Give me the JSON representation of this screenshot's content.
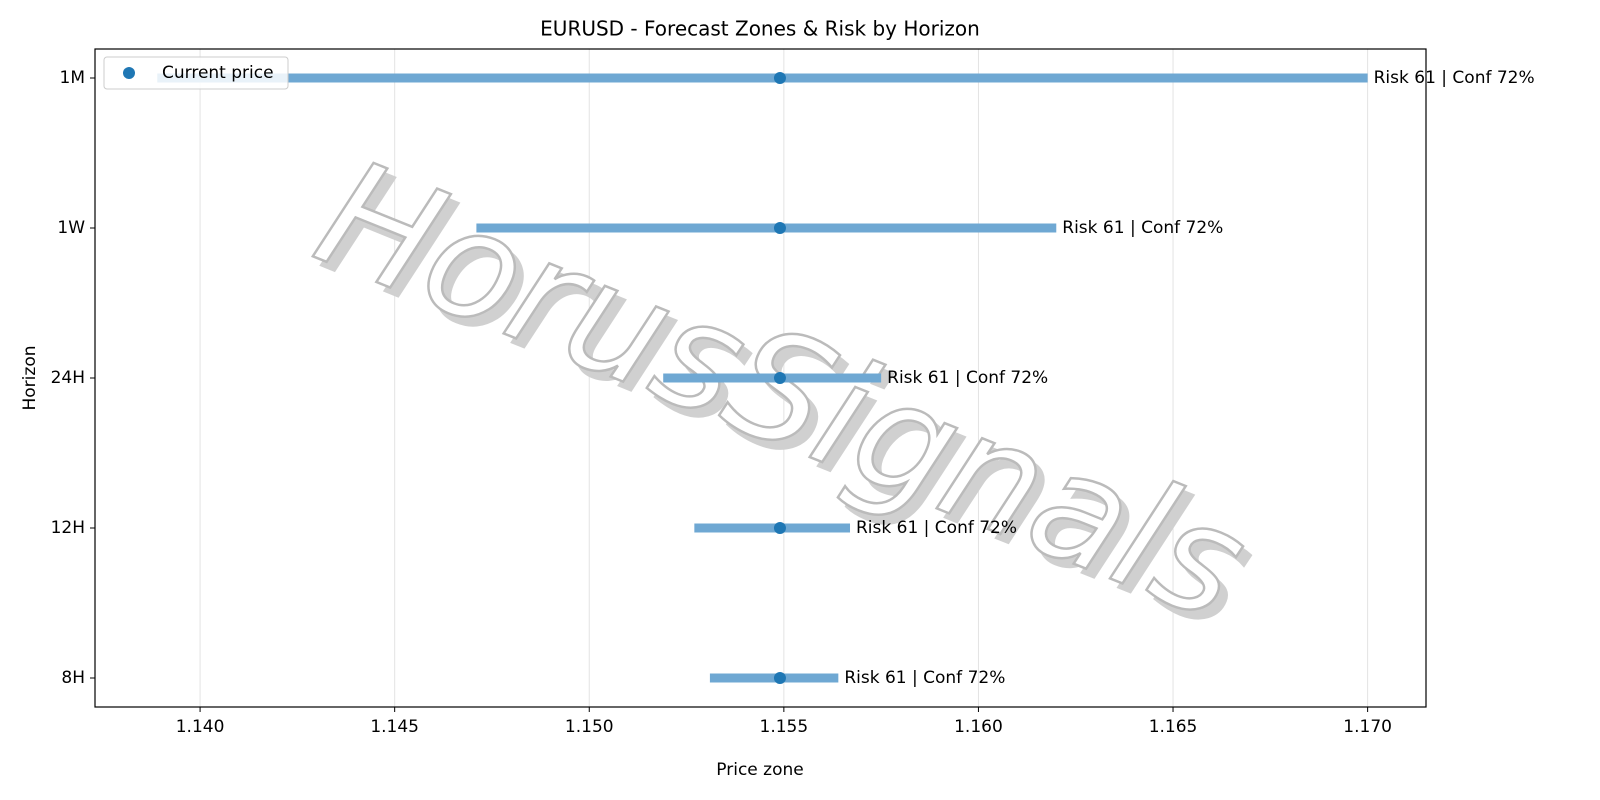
{
  "chart_data": {
    "type": "range",
    "title": "EURUSD - Forecast Zones & Risk by Horizon",
    "xlabel": "Price zone",
    "ylabel": "Horizon",
    "watermark": "HorusSignals",
    "categories": [
      "1M",
      "1W",
      "24H",
      "12H",
      "8H"
    ],
    "zones": {
      "color": "#6fa8d3",
      "low": [
        1.1389,
        1.1471,
        1.1519,
        1.1527,
        1.1531
      ],
      "high": [
        1.17,
        1.162,
        1.1575,
        1.1567,
        1.1564
      ]
    },
    "current": {
      "name": "Current price",
      "color": "#1f77b4",
      "values": [
        1.1549,
        1.1549,
        1.1549,
        1.1549,
        1.1549
      ]
    },
    "annotations": [
      "Risk 61 | Conf 72%",
      "Risk 61 | Conf 72%",
      "Risk 61 | Conf 72%",
      "Risk 61 | Conf 72%",
      "Risk 61 | Conf 72%"
    ],
    "xlim": [
      1.1373,
      1.1715
    ],
    "xticks": [
      {
        "value": 1.14,
        "label": "1.140"
      },
      {
        "value": 1.145,
        "label": "1.145"
      },
      {
        "value": 1.15,
        "label": "1.150"
      },
      {
        "value": 1.155,
        "label": "1.155"
      },
      {
        "value": 1.16,
        "label": "1.160"
      },
      {
        "value": 1.165,
        "label": "1.165"
      },
      {
        "value": 1.17,
        "label": "1.170"
      }
    ],
    "grid": true,
    "legend": "upper left"
  }
}
